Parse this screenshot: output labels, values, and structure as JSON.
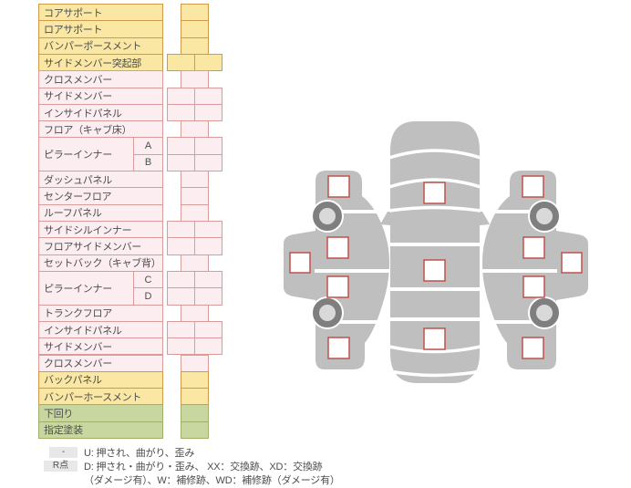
{
  "table": {
    "rows": [
      {
        "label": "コアサポート",
        "color": "yellow",
        "cells": 1
      },
      {
        "label": "ロアサポート",
        "color": "yellow",
        "cells": 1
      },
      {
        "label": "バンパーポースメント",
        "color": "yellow",
        "cells": 1
      },
      {
        "label": "サイドメンバー突起部",
        "color": "yellow",
        "cells": 2
      },
      {
        "label": "クロスメンバー",
        "color": "pink",
        "cells": 1
      },
      {
        "label": "サイドメンバー",
        "color": "pink",
        "cells": 2
      },
      {
        "label": "インサイドパネル",
        "color": "pink",
        "cells": 2
      },
      {
        "label": "フロア（キャブ床）",
        "color": "pink",
        "cells": 1
      },
      {
        "label": "ピラーインナー",
        "sub": "A",
        "color": "pink",
        "cells": 2
      },
      {
        "sub": "B",
        "color": "pink",
        "cells": 2
      },
      {
        "label": "ダッシュパネル",
        "color": "pink",
        "cells": 1
      },
      {
        "label": "センターフロア",
        "color": "pink",
        "cells": 1
      },
      {
        "label": "ルーフパネル",
        "color": "pink",
        "cells": 1
      },
      {
        "label": "サイドシルインナー",
        "color": "pink",
        "cells": 2
      },
      {
        "label": "フロアサイドメンバー",
        "color": "pink",
        "cells": 2
      },
      {
        "label": "セットバック（キャブ背）",
        "color": "pink",
        "cells": 1
      },
      {
        "label": "ピラーインナー",
        "sub": "C",
        "color": "pink",
        "cells": 2
      },
      {
        "sub": "D",
        "color": "pink",
        "cells": 2
      },
      {
        "label": "トランクフロア",
        "color": "pink",
        "cells": 1
      },
      {
        "label": "インサイドパネル",
        "color": "pink",
        "cells": 2
      },
      {
        "label": "サイドメンバー",
        "color": "pink",
        "cells": 2
      },
      {
        "label": "クロスメンバー",
        "color": "pink",
        "cells": 1
      },
      {
        "label": "バックパネル",
        "color": "yellow",
        "cells": 1
      },
      {
        "label": "バンパーホースメント",
        "color": "yellow",
        "cells": 1
      },
      {
        "label": "下回り",
        "color": "green",
        "cells": 1
      },
      {
        "label": "指定塗装",
        "color": "green",
        "cells": 1
      }
    ]
  },
  "legend": {
    "row1": {
      "badge": "-",
      "text": "U: 押され、曲がり、歪み"
    },
    "row2": {
      "badge": "R点",
      "text": "D: 押され・曲がり・歪み、 XX：交換跡、XD：交換跡"
    },
    "row3": {
      "text": "（ダメージ有）、W：補修跡、WD：補修跡（ダメージ有）"
    }
  },
  "diagram": {
    "views": [
      {
        "name": "left-side-view",
        "checkpoints": 5,
        "wheels": 2
      },
      {
        "name": "top-view",
        "checkpoints": 3,
        "wheels": 0
      },
      {
        "name": "right-side-view",
        "checkpoints": 5,
        "wheels": 2
      }
    ]
  },
  "colors": {
    "yellow_bg": "#FAE7A4",
    "yellow_border": "#CD9B4A",
    "pink_bg": "#FCEEF0",
    "pink_border": "#DA9C9A",
    "green_bg": "#C8D7A0",
    "green_border": "#9FAF6A",
    "text": "#4d4d4d",
    "car_body": "#BFBFBF",
    "wheel_ring": "#7F7F7F",
    "wheel_hub": "#D9D9D9",
    "checkpoint_border": "#C0504D",
    "checkpoint_fill": "#FFFFFF",
    "legend_badge_bg": "#E8E8E8"
  }
}
